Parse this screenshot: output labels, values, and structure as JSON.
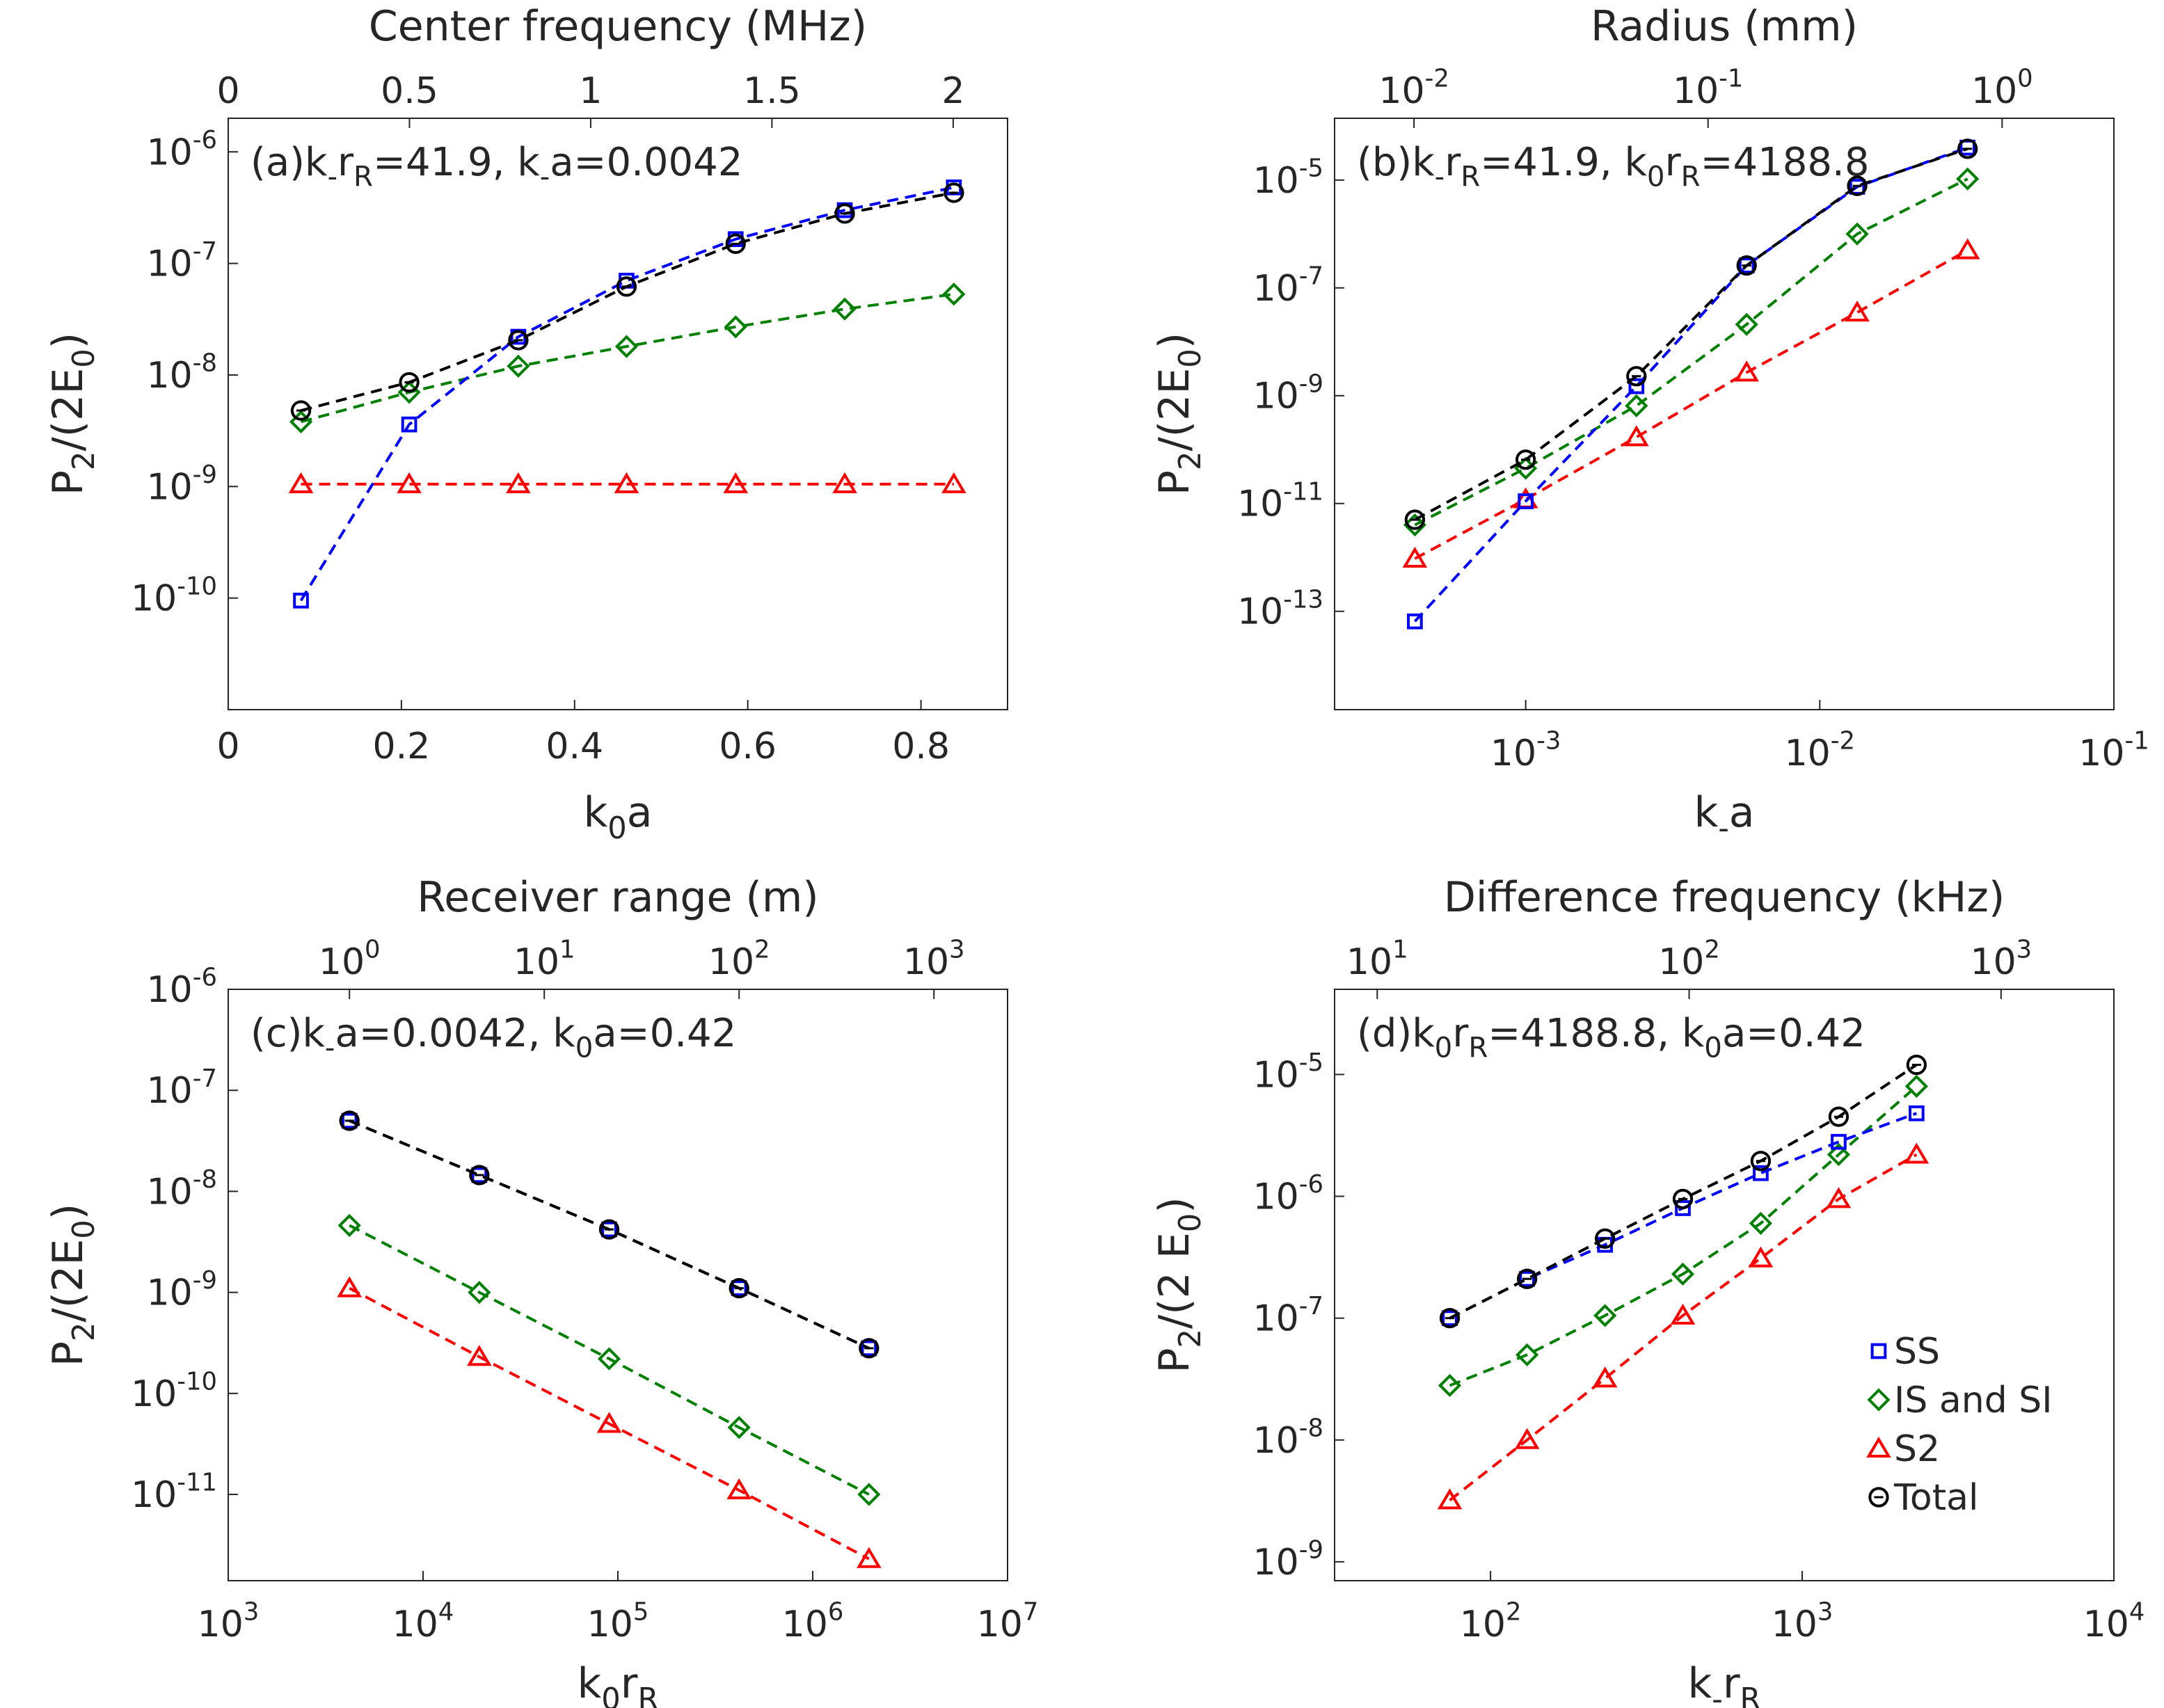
{
  "legend": {
    "entries": [
      {
        "label": "SS",
        "color": "#0000ff",
        "marker": "square"
      },
      {
        "label": "IS and SI",
        "color": "#008000",
        "marker": "diamond"
      },
      {
        "label": "S2",
        "color": "#ff0000",
        "marker": "triangle"
      },
      {
        "label": "Total",
        "color": "#000000",
        "marker": "circle"
      }
    ]
  },
  "chart_data": [
    {
      "type": "line",
      "title": "(a)k₋rᵣ=41.9, k₋a=0.0042",
      "xlabel": "k₀a",
      "ylabel": "P₂/(2E₀)",
      "top_xlabel": "Center frequency (MHz)",
      "xscale": "linear",
      "yscale": "log",
      "xlim": [
        0,
        0.9
      ],
      "ylim": [
        1e-11,
        2e-06
      ],
      "xticks": [
        0,
        0.2,
        0.4,
        0.6,
        0.8
      ],
      "xtick_labels": [
        "0",
        "0.2",
        "0.4",
        "0.6",
        "0.8"
      ],
      "yticks": [
        1e-10,
        1e-09,
        1e-08,
        1e-07,
        1e-06
      ],
      "ytick_exps": [
        "-10",
        "-9",
        "-8",
        "-7",
        "-6"
      ],
      "top_xticks": [
        0,
        0.5,
        1,
        1.5,
        2
      ],
      "top_xtick_labels": [
        "0",
        "0.5",
        "1",
        "1.5",
        "2"
      ],
      "top_xlim": [
        0,
        2.15
      ],
      "x": [
        0.084,
        0.209,
        0.335,
        0.46,
        0.586,
        0.712,
        0.838
      ],
      "series": [
        {
          "name": "SS",
          "values": [
            9.5e-11,
            3.6e-09,
            2.2e-08,
            7e-08,
            1.65e-07,
            3e-07,
            4.8e-07
          ]
        },
        {
          "name": "IS and SI",
          "values": [
            3.8e-09,
            7e-09,
            1.2e-08,
            1.8e-08,
            2.7e-08,
            3.9e-08,
            5.3e-08
          ]
        },
        {
          "name": "S2",
          "values": [
            1.05e-09,
            1.05e-09,
            1.05e-09,
            1.05e-09,
            1.05e-09,
            1.05e-09,
            1.05e-09
          ]
        },
        {
          "name": "Total",
          "values": [
            4.8e-09,
            8.6e-09,
            2.05e-08,
            6.2e-08,
            1.5e-07,
            2.8e-07,
            4.3e-07
          ]
        }
      ]
    },
    {
      "type": "line",
      "title": "(b)k₋rᵣ=41.9, k₀rᵣ=4188.8",
      "xlabel": "k₋a",
      "ylabel": "P₂/(2E₀)",
      "top_xlabel": "Radius (mm)",
      "xscale": "log",
      "yscale": "log",
      "xlim": [
        0.000224,
        0.1
      ],
      "ylim": [
        1.5e-15,
        0.00014
      ],
      "xticks": [
        0.001,
        0.01,
        0.1
      ],
      "xtick_exps": [
        "-3",
        "-2",
        "-1"
      ],
      "yticks": [
        1e-13,
        1e-11,
        1e-09,
        1e-07,
        1e-05
      ],
      "ytick_exps": [
        "-13",
        "-11",
        "-9",
        "-7",
        "-5"
      ],
      "top_xticks": [
        0.01,
        0.1,
        1
      ],
      "top_xtick_exps": [
        "-2",
        "-1",
        "0"
      ],
      "top_xlim": [
        0.00537,
        2.4
      ],
      "x": [
        0.00042,
        0.001,
        0.00238,
        0.00564,
        0.0134,
        0.0318
      ],
      "series": [
        {
          "name": "SS",
          "values": [
            6.5e-14,
            1.1e-11,
            1.5e-09,
            2.6e-07,
            7.5e-06,
            4e-05
          ]
        },
        {
          "name": "IS and SI",
          "values": [
            4e-12,
            4.5e-11,
            6.5e-10,
            2.1e-08,
            1e-06,
            1.05e-05
          ]
        },
        {
          "name": "S2",
          "values": [
            9.5e-13,
            1.2e-11,
            1.7e-10,
            2.7e-09,
            3.5e-08,
            5e-07
          ]
        },
        {
          "name": "Total",
          "values": [
            5e-12,
            6.5e-11,
            2.3e-09,
            2.6e-07,
            7.8e-06,
            3.8e-05
          ]
        }
      ]
    },
    {
      "type": "line",
      "title": "(c)k₋a=0.0042, k₀a=0.42",
      "xlabel": "k₀rᵣ",
      "ylabel": "P₂/(2E₀)",
      "top_xlabel": "Receiver range (m)",
      "xscale": "log",
      "yscale": "log",
      "xlim": [
        1000,
        10000000
      ],
      "ylim": [
        1.4e-12,
        1e-06
      ],
      "xticks": [
        1000,
        10000,
        100000,
        1000000,
        10000000
      ],
      "xtick_exps": [
        "3",
        "4",
        "5",
        "6",
        "7"
      ],
      "yticks": [
        1e-11,
        1e-10,
        1e-09,
        1e-08,
        1e-07,
        1e-06
      ],
      "ytick_exps": [
        "-11",
        "-10",
        "-9",
        "-8",
        "-7",
        "-6"
      ],
      "top_xticks": [
        1,
        10,
        100,
        1000
      ],
      "top_xtick_exps": [
        "0",
        "1",
        "2",
        "3"
      ],
      "top_xlim": [
        0.2387,
        2387
      ],
      "x": [
        4188.8,
        19440,
        90240,
        418880,
        1944000
      ],
      "series": [
        {
          "name": "SS",
          "values": [
            5e-08,
            1.45e-08,
            4.2e-09,
            1.1e-09,
            2.8e-10
          ]
        },
        {
          "name": "IS and SI",
          "values": [
            4.6e-09,
            1e-09,
            2.2e-10,
            4.6e-11,
            1e-11
          ]
        },
        {
          "name": "S2",
          "values": [
            1.1e-09,
            2.3e-10,
            5e-11,
            1.1e-11,
            2.3e-12
          ]
        },
        {
          "name": "Total",
          "values": [
            5e-08,
            1.45e-08,
            4.2e-09,
            1.1e-09,
            2.8e-10
          ]
        }
      ]
    },
    {
      "type": "line",
      "title": "(d)k₀rᵣ=4188.8, k₀a=0.42",
      "xlabel": "k₋rᵣ",
      "ylabel": "P₂/(2 E₀)",
      "top_xlabel": "Difference frequency (kHz)",
      "xscale": "log",
      "yscale": "log",
      "xlim": [
        31.6,
        10000
      ],
      "ylim": [
        7e-10,
        5e-05
      ],
      "xticks": [
        100,
        1000,
        10000
      ],
      "xtick_exps": [
        "2",
        "3",
        "4"
      ],
      "yticks": [
        1e-09,
        1e-08,
        1e-07,
        1e-06,
        1e-05
      ],
      "ytick_exps": [
        "-9",
        "-8",
        "-7",
        "-6",
        "-5"
      ],
      "top_xticks": [
        10,
        100,
        1000
      ],
      "top_xtick_exps": [
        "1",
        "2",
        "3"
      ],
      "top_xlim": [
        7.3,
        2300
      ],
      "x": [
        74,
        131,
        233,
        414,
        736,
        1309,
        2327
      ],
      "series": [
        {
          "name": "SS",
          "values": [
            1e-07,
            2.1e-07,
            4e-07,
            8e-07,
            1.55e-06,
            2.8e-06,
            4.8e-06
          ]
        },
        {
          "name": "IS and SI",
          "values": [
            2.8e-08,
            5e-08,
            1.05e-07,
            2.3e-07,
            6e-07,
            2.2e-06,
            8e-06
          ]
        },
        {
          "name": "S2",
          "values": [
            3.2e-09,
            1e-08,
            3.2e-08,
            1.05e-07,
            3.1e-07,
            9.5e-07,
            2.2e-06
          ]
        },
        {
          "name": "Total",
          "values": [
            1e-07,
            2.1e-07,
            4.5e-07,
            9.5e-07,
            1.95e-06,
            4.5e-06,
            1.2e-05
          ]
        }
      ]
    }
  ]
}
